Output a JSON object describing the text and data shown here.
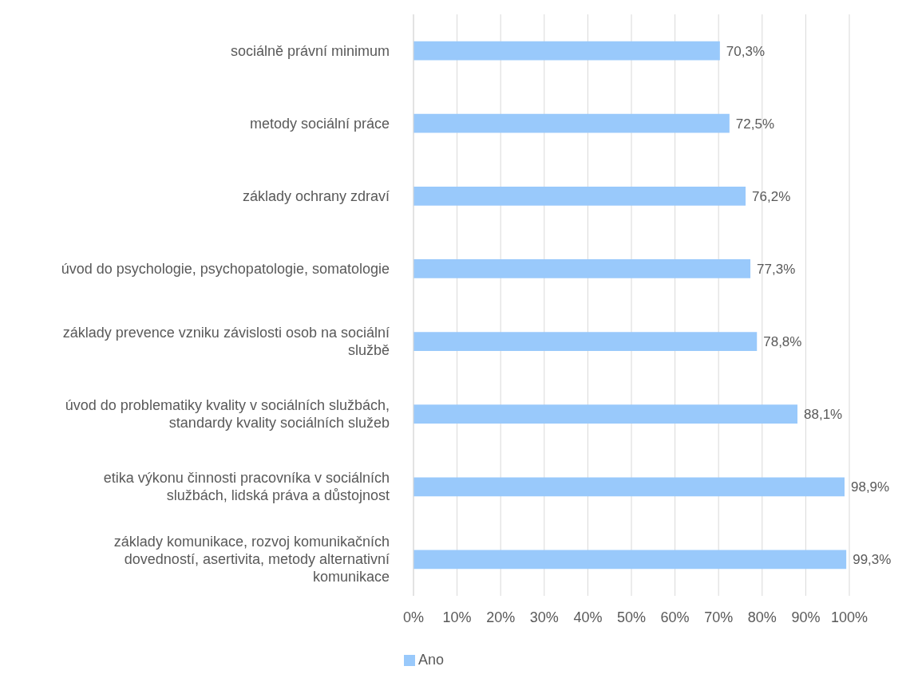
{
  "chart_data": {
    "type": "bar",
    "orientation": "horizontal",
    "categories": [
      "sociálně právní minimum",
      "metody sociální práce",
      "základy ochrany zdraví",
      "úvod do psychologie, psychopatologie, somatologie",
      "základy prevence vzniku závislosti osob na sociální službě",
      "úvod do problematiky kvality v sociálních službách, standardy kvality sociálních služeb",
      "etika výkonu činnosti pracovníka v sociálních službách, lidská práva a důstojnost",
      "základy komunikace, rozvoj komunikačních dovedností, asertivita, metody alternativní komunikace"
    ],
    "series": [
      {
        "name": "Ano",
        "color": "#99c9fb",
        "values": [
          70.3,
          72.5,
          76.2,
          77.3,
          78.8,
          88.1,
          98.9,
          99.3
        ],
        "value_labels": [
          "70,3%",
          "72,5%",
          "76,2%",
          "77,3%",
          "78,8%",
          "88,1%",
          "98,9%",
          "99,3%"
        ]
      }
    ],
    "xlim": [
      0,
      100
    ],
    "xticks": [
      {
        "value": 0,
        "label": "0%"
      },
      {
        "value": 10,
        "label": "10%"
      },
      {
        "value": 20,
        "label": "20%"
      },
      {
        "value": 30,
        "label": "30%"
      },
      {
        "value": 40,
        "label": "40%"
      },
      {
        "value": 50,
        "label": "50%"
      },
      {
        "value": 60,
        "label": "60%"
      },
      {
        "value": 70,
        "label": "70%"
      },
      {
        "value": 80,
        "label": "80%"
      },
      {
        "value": 90,
        "label": "90%"
      },
      {
        "value": 100,
        "label": "100%"
      }
    ],
    "grid": "x",
    "legend": "bottom"
  }
}
